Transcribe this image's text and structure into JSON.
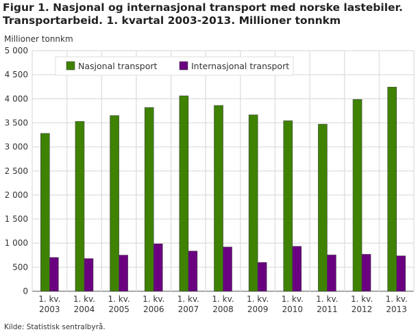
{
  "title_line1": "Figur 1. Nasjonal og internasjonal transport med norske lastebiler.",
  "title_line2": "Transportarbeid. 1. kvartal 2003-2013. Millioner tonnkm",
  "source": "Kilde: Statistisk sentralbyrå.",
  "chart_data": {
    "type": "bar",
    "ylabel": "Millioner tonnkm",
    "ylim": [
      0,
      5000
    ],
    "yticks": [
      0,
      500,
      1000,
      1500,
      2000,
      2500,
      3000,
      3500,
      4000,
      4500,
      5000
    ],
    "ytick_labels": [
      "0",
      "500",
      "1 000",
      "1 500",
      "2 000",
      "2 500",
      "3 000",
      "3 500",
      "4 000",
      "4 500",
      "5 000"
    ],
    "grid": true,
    "legend_placement": "top-left",
    "categories": [
      [
        "1. kv.",
        "2003"
      ],
      [
        "1. kv.",
        "2004"
      ],
      [
        "1. kv.",
        "2005"
      ],
      [
        "1. kv.",
        "2006"
      ],
      [
        "1. kv.",
        "2007"
      ],
      [
        "1. kv.",
        "2008"
      ],
      [
        "1. kv.",
        "2009"
      ],
      [
        "1. kv.",
        "2010"
      ],
      [
        "1. kv.",
        "2011"
      ],
      [
        "1. kv.",
        "2012"
      ],
      [
        "1. kv.",
        "2013"
      ]
    ],
    "series": [
      {
        "name": "Nasjonal transport",
        "color": "#3e8200",
        "values": [
          3280,
          3529,
          3651,
          3819,
          4061,
          3861,
          3666,
          3543,
          3471,
          3986,
          4243
        ]
      },
      {
        "name": "Internasjonal transport",
        "color": "#6a0080",
        "values": [
          702,
          679,
          750,
          985,
          835,
          919,
          598,
          933,
          754,
          768,
          735
        ]
      }
    ]
  }
}
